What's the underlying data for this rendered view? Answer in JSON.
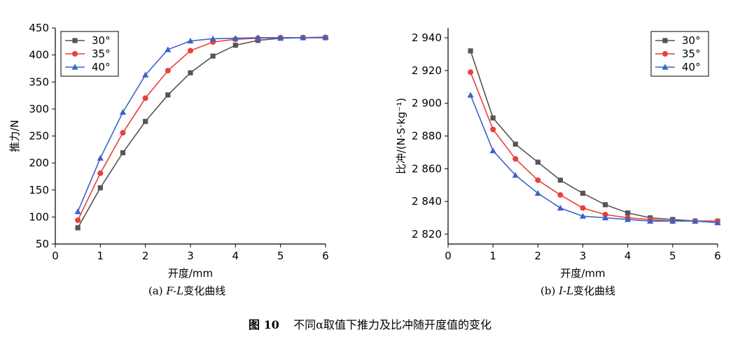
{
  "figure_caption": {
    "label": "图 10",
    "text": "不同α取值下推力及比冲随开度值的变化"
  },
  "colors": {
    "30°": "#555555",
    "35°": "#e8413b",
    "40°": "#3a63c7"
  },
  "chart_data": [
    {
      "id": "a",
      "type": "line",
      "subtitle": {
        "prefix": "(a) ",
        "italic": "F-L",
        "suffix": "变化曲线"
      },
      "xlabel": "开度/mm",
      "ylabel": "推力/N",
      "xlim": [
        0,
        6
      ],
      "ylim": [
        50,
        450
      ],
      "xticks": [
        0,
        1,
        2,
        3,
        4,
        5,
        6
      ],
      "yticks": [
        50,
        100,
        150,
        200,
        250,
        300,
        350,
        400,
        450
      ],
      "ytick_labels": [
        "50",
        "100",
        "150",
        "200",
        "250",
        "300",
        "350",
        "400",
        "450"
      ],
      "legend_position": "top-left",
      "x": [
        0.5,
        1,
        1.5,
        2,
        2.5,
        3,
        3.5,
        4,
        4.5,
        5,
        5.5,
        6
      ],
      "series": [
        {
          "name": "30°",
          "marker": "square",
          "values": [
            80,
            154,
            219,
            277,
            326,
            367,
            398,
            418,
            427,
            431,
            432,
            432
          ]
        },
        {
          "name": "35°",
          "marker": "circle",
          "values": [
            94,
            181,
            256,
            320,
            371,
            408,
            424,
            429,
            431,
            432,
            432,
            432
          ]
        },
        {
          "name": "40°",
          "marker": "triangle",
          "values": [
            110,
            209,
            294,
            363,
            410,
            426,
            430,
            431,
            432,
            432,
            432,
            433
          ]
        }
      ]
    },
    {
      "id": "b",
      "type": "line",
      "subtitle": {
        "prefix": "(b) ",
        "italic": "I-L",
        "suffix": "变化曲线"
      },
      "xlabel": "开度/mm",
      "ylabel": "比冲/(N·S·kg⁻¹)",
      "xlim": [
        0,
        6
      ],
      "ylim": [
        2814,
        2946
      ],
      "xticks": [
        0,
        1,
        2,
        3,
        4,
        5,
        6
      ],
      "yticks": [
        2820,
        2840,
        2860,
        2880,
        2900,
        2920,
        2940
      ],
      "ytick_labels": [
        "2 820",
        "2 840",
        "2 860",
        "2 880",
        "2 900",
        "2 920",
        "2 940"
      ],
      "legend_position": "top-right",
      "x": [
        0.5,
        1,
        1.5,
        2,
        2.5,
        3,
        3.5,
        4,
        4.5,
        5,
        5.5,
        6
      ],
      "series": [
        {
          "name": "30°",
          "marker": "square",
          "values": [
            2932,
            2891,
            2875,
            2864,
            2853,
            2845,
            2838,
            2833,
            2830,
            2829,
            2828,
            2828
          ]
        },
        {
          "name": "35°",
          "marker": "circle",
          "values": [
            2919,
            2884,
            2866,
            2853,
            2844,
            2836,
            2832,
            2830,
            2829,
            2828,
            2828,
            2828
          ]
        },
        {
          "name": "40°",
          "marker": "triangle",
          "values": [
            2905,
            2871,
            2856,
            2845,
            2836,
            2831,
            2830,
            2829,
            2828,
            2828,
            2828,
            2827
          ]
        }
      ]
    }
  ]
}
